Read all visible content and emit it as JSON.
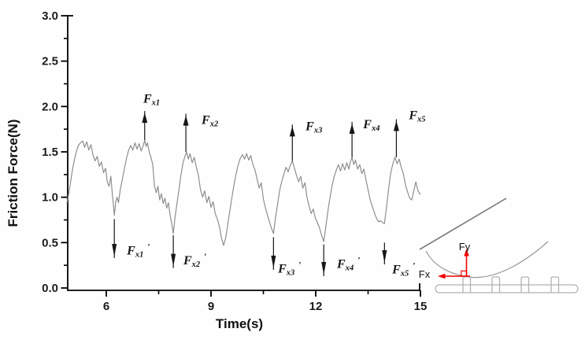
{
  "chart_data": {
    "type": "line",
    "title": "",
    "xlabel": "Time(s)",
    "ylabel": "Friction Force(N)",
    "xlim": [
      4.87,
      15
    ],
    "ylim": [
      0.0,
      3.0
    ],
    "grid": false,
    "legend": "none",
    "x_major_ticks": [
      6,
      9,
      12,
      15
    ],
    "x_minor_ticks": [
      7.5,
      10.5,
      13.5
    ],
    "x_tick_labels": [
      "6",
      "9",
      "12",
      "15"
    ],
    "y_major_ticks": [
      0.0,
      0.5,
      1.0,
      1.5,
      2.0,
      2.5,
      3.0
    ],
    "y_minor_ticks": [
      0.25,
      0.75,
      1.25,
      1.75,
      2.25,
      2.75
    ],
    "y_tick_labels": [
      "0.0",
      "0.5",
      "1.0",
      "1.5",
      "2.0",
      "2.5",
      "3.0"
    ],
    "line_color": "#8a8a8a",
    "axis_color": "#000000",
    "series": [
      {
        "name": "friction-force-signal",
        "points": [
          [
            4.87,
            0.93
          ],
          [
            4.93,
            1.05
          ],
          [
            4.98,
            1.18
          ],
          [
            5.03,
            1.3
          ],
          [
            5.08,
            1.4
          ],
          [
            5.14,
            1.5
          ],
          [
            5.2,
            1.57
          ],
          [
            5.26,
            1.6
          ],
          [
            5.32,
            1.62
          ],
          [
            5.38,
            1.55
          ],
          [
            5.44,
            1.61
          ],
          [
            5.5,
            1.52
          ],
          [
            5.56,
            1.58
          ],
          [
            5.62,
            1.46
          ],
          [
            5.68,
            1.4
          ],
          [
            5.74,
            1.45
          ],
          [
            5.8,
            1.34
          ],
          [
            5.86,
            1.39
          ],
          [
            5.92,
            1.27
          ],
          [
            5.98,
            1.32
          ],
          [
            6.03,
            1.17
          ],
          [
            6.08,
            1.12
          ],
          [
            6.13,
            1.23
          ],
          [
            6.17,
            1.05
          ],
          [
            6.2,
            0.93
          ],
          [
            6.23,
            0.8
          ],
          [
            6.27,
            0.95
          ],
          [
            6.31,
            1.0
          ],
          [
            6.35,
            0.94
          ],
          [
            6.4,
            1.08
          ],
          [
            6.46,
            1.2
          ],
          [
            6.52,
            1.32
          ],
          [
            6.58,
            1.43
          ],
          [
            6.64,
            1.52
          ],
          [
            6.7,
            1.57
          ],
          [
            6.76,
            1.52
          ],
          [
            6.82,
            1.6
          ],
          [
            6.88,
            1.53
          ],
          [
            6.94,
            1.59
          ],
          [
            7.0,
            1.51
          ],
          [
            7.06,
            1.57
          ],
          [
            7.1,
            1.63
          ],
          [
            7.14,
            1.56
          ],
          [
            7.18,
            1.6
          ],
          [
            7.23,
            1.5
          ],
          [
            7.28,
            1.44
          ],
          [
            7.33,
            1.36
          ],
          [
            7.38,
            1.12
          ],
          [
            7.43,
            1.05
          ],
          [
            7.48,
            1.12
          ],
          [
            7.53,
            0.97
          ],
          [
            7.58,
            1.04
          ],
          [
            7.63,
            0.93
          ],
          [
            7.68,
            0.99
          ],
          [
            7.73,
            0.88
          ],
          [
            7.78,
            0.94
          ],
          [
            7.83,
            0.8
          ],
          [
            7.88,
            0.7
          ],
          [
            7.92,
            0.6
          ],
          [
            7.97,
            0.78
          ],
          [
            8.02,
            0.92
          ],
          [
            8.08,
            1.08
          ],
          [
            8.14,
            1.25
          ],
          [
            8.2,
            1.38
          ],
          [
            8.26,
            1.46
          ],
          [
            8.3,
            1.5
          ],
          [
            8.35,
            1.42
          ],
          [
            8.4,
            1.48
          ],
          [
            8.46,
            1.38
          ],
          [
            8.52,
            1.44
          ],
          [
            8.58,
            1.33
          ],
          [
            8.64,
            1.24
          ],
          [
            8.7,
            1.08
          ],
          [
            8.76,
            1.0
          ],
          [
            8.82,
            1.07
          ],
          [
            8.88,
            0.94
          ],
          [
            8.94,
            1.01
          ],
          [
            9.0,
            0.89
          ],
          [
            9.06,
            0.95
          ],
          [
            9.12,
            0.82
          ],
          [
            9.18,
            0.76
          ],
          [
            9.24,
            0.68
          ],
          [
            9.3,
            0.55
          ],
          [
            9.36,
            0.47
          ],
          [
            9.42,
            0.55
          ],
          [
            9.48,
            0.7
          ],
          [
            9.54,
            0.85
          ],
          [
            9.6,
            1.0
          ],
          [
            9.66,
            1.14
          ],
          [
            9.72,
            1.26
          ],
          [
            9.78,
            1.36
          ],
          [
            9.84,
            1.43
          ],
          [
            9.9,
            1.47
          ],
          [
            9.96,
            1.42
          ],
          [
            10.02,
            1.48
          ],
          [
            10.08,
            1.41
          ],
          [
            10.14,
            1.46
          ],
          [
            10.2,
            1.36
          ],
          [
            10.26,
            1.3
          ],
          [
            10.32,
            1.2
          ],
          [
            10.38,
            1.1
          ],
          [
            10.44,
            1.16
          ],
          [
            10.5,
            0.98
          ],
          [
            10.56,
            0.88
          ],
          [
            10.62,
            0.8
          ],
          [
            10.68,
            0.72
          ],
          [
            10.74,
            0.65
          ],
          [
            10.79,
            0.6
          ],
          [
            10.85,
            0.78
          ],
          [
            10.91,
            0.93
          ],
          [
            10.97,
            1.08
          ],
          [
            11.03,
            1.18
          ],
          [
            11.09,
            1.26
          ],
          [
            11.15,
            1.33
          ],
          [
            11.21,
            1.28
          ],
          [
            11.27,
            1.35
          ],
          [
            11.33,
            1.4
          ],
          [
            11.39,
            1.32
          ],
          [
            11.45,
            1.24
          ],
          [
            11.51,
            1.17
          ],
          [
            11.57,
            1.23
          ],
          [
            11.63,
            1.1
          ],
          [
            11.69,
            1.16
          ],
          [
            11.75,
            1.0
          ],
          [
            11.81,
            0.9
          ],
          [
            11.87,
            0.82
          ],
          [
            11.93,
            0.87
          ],
          [
            11.99,
            0.77
          ],
          [
            12.05,
            0.72
          ],
          [
            12.11,
            0.66
          ],
          [
            12.17,
            0.58
          ],
          [
            12.23,
            0.51
          ],
          [
            12.29,
            0.68
          ],
          [
            12.35,
            0.85
          ],
          [
            12.41,
            1.0
          ],
          [
            12.47,
            1.13
          ],
          [
            12.53,
            1.23
          ],
          [
            12.59,
            1.3
          ],
          [
            12.65,
            1.36
          ],
          [
            12.71,
            1.29
          ],
          [
            12.77,
            1.37
          ],
          [
            12.83,
            1.3
          ],
          [
            12.89,
            1.38
          ],
          [
            12.95,
            1.31
          ],
          [
            13.0,
            1.4
          ],
          [
            13.04,
            1.44
          ],
          [
            13.09,
            1.36
          ],
          [
            13.14,
            1.41
          ],
          [
            13.2,
            1.31
          ],
          [
            13.26,
            1.36
          ],
          [
            13.32,
            1.26
          ],
          [
            13.38,
            1.31
          ],
          [
            13.44,
            1.19
          ],
          [
            13.5,
            1.08
          ],
          [
            13.56,
            0.97
          ],
          [
            13.62,
            0.9
          ],
          [
            13.68,
            0.83
          ],
          [
            13.74,
            0.77
          ],
          [
            13.8,
            0.73
          ],
          [
            13.86,
            0.74
          ],
          [
            13.92,
            0.72
          ],
          [
            13.97,
            0.71
          ],
          [
            14.03,
            0.9
          ],
          [
            14.09,
            1.1
          ],
          [
            14.15,
            1.27
          ],
          [
            14.21,
            1.37
          ],
          [
            14.27,
            1.44
          ],
          [
            14.33,
            1.37
          ],
          [
            14.39,
            1.42
          ],
          [
            14.45,
            1.33
          ],
          [
            14.51,
            1.26
          ],
          [
            14.57,
            1.14
          ],
          [
            14.63,
            1.06
          ],
          [
            14.69,
            0.99
          ],
          [
            14.75,
            0.97
          ],
          [
            14.81,
            1.07
          ],
          [
            14.87,
            1.17
          ],
          [
            14.93,
            1.07
          ],
          [
            15.0,
            1.03
          ]
        ]
      }
    ],
    "annotations": {
      "peaks": [
        {
          "name": "Fx1",
          "f": "F",
          "sub": "x1",
          "prime": false,
          "arrow_t": 7.1,
          "arrow_from": 1.63,
          "arrow_to": 1.95,
          "label_t": 7.06,
          "label_v": 2.04
        },
        {
          "name": "Fx2",
          "f": "F",
          "sub": "x2",
          "prime": false,
          "arrow_t": 8.28,
          "arrow_from": 1.5,
          "arrow_to": 1.92,
          "label_t": 8.73,
          "label_v": 1.81
        },
        {
          "name": "Fx3",
          "f": "F",
          "sub": "x3",
          "prime": false,
          "arrow_t": 11.33,
          "arrow_from": 1.4,
          "arrow_to": 1.8,
          "label_t": 11.71,
          "label_v": 1.74
        },
        {
          "name": "Fx4",
          "f": "F",
          "sub": "x4",
          "prime": false,
          "arrow_t": 13.04,
          "arrow_from": 1.44,
          "arrow_to": 1.83,
          "label_t": 13.36,
          "label_v": 1.76
        },
        {
          "name": "Fx5",
          "f": "F",
          "sub": "x5",
          "prime": false,
          "arrow_t": 14.31,
          "arrow_from": 1.44,
          "arrow_to": 1.86,
          "label_t": 14.67,
          "label_v": 1.86
        }
      ],
      "valleys": [
        {
          "name": "Fx1-prime",
          "f": "F",
          "sub": "x1",
          "prime": true,
          "arrow_t": 6.23,
          "arrow_from": 0.76,
          "arrow_to": 0.33,
          "label_t": 6.59,
          "label_v": 0.37
        },
        {
          "name": "Fx2-prime",
          "f": "F",
          "sub": "x2",
          "prime": true,
          "arrow_t": 7.92,
          "arrow_from": 0.58,
          "arrow_to": 0.22,
          "label_t": 8.21,
          "label_v": 0.26
        },
        {
          "name": "Fx3-prime",
          "f": "F",
          "sub": "x3",
          "prime": true,
          "arrow_t": 10.79,
          "arrow_from": 0.56,
          "arrow_to": 0.2,
          "label_t": 10.92,
          "label_v": 0.17
        },
        {
          "name": "Fx4-prime",
          "f": "F",
          "sub": "x4",
          "prime": true,
          "arrow_t": 12.23,
          "arrow_from": 0.48,
          "arrow_to": 0.13,
          "label_t": 12.61,
          "label_v": 0.22
        },
        {
          "name": "Fx5-prime",
          "f": "F",
          "sub": "x5",
          "prime": true,
          "arrow_t": 13.97,
          "arrow_from": 0.5,
          "arrow_to": 0.26,
          "label_t": 14.19,
          "label_v": 0.16
        }
      ]
    }
  },
  "inset": {
    "fy_label": "Fy",
    "fx_label": "Fx",
    "arrow_color": "#f40000",
    "blade_color": "#7d7d7d",
    "pad_color": "#9a9a9a",
    "substrate_color": "#b3b3b3"
  }
}
